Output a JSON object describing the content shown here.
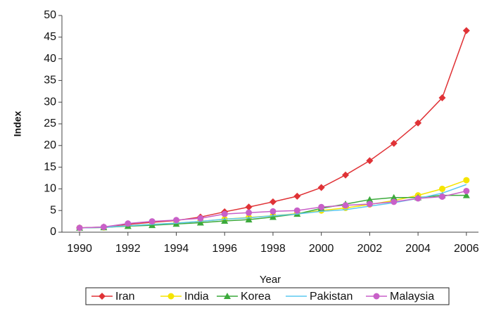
{
  "chart_data": {
    "type": "line",
    "y_label": "Index",
    "x_label": "Year",
    "x": [
      1990,
      1991,
      1992,
      1993,
      1994,
      1995,
      1996,
      1997,
      1998,
      1999,
      2000,
      2001,
      2002,
      2003,
      2004,
      2005,
      2006
    ],
    "xlim": [
      1989.27,
      2006.5
    ],
    "xticks": [
      1990,
      1992,
      1994,
      1996,
      1998,
      2000,
      2002,
      2004,
      2006
    ],
    "ylim": [
      0,
      50
    ],
    "yticks": [
      0,
      5,
      10,
      15,
      20,
      25,
      30,
      35,
      40,
      45,
      50
    ],
    "grid": false,
    "legend": "bottom",
    "series": [
      {
        "name": "Iran",
        "color": "#e03236",
        "marker": "diamond",
        "values": [
          1,
          1.2,
          1.8,
          2.3,
          2.7,
          3.5,
          4.7,
          5.8,
          7,
          8.3,
          10.3,
          13.2,
          16.5,
          20.5,
          25.2,
          31,
          46.5
        ]
      },
      {
        "name": "India",
        "color": "#f5e400",
        "marker": "circle",
        "values": [
          1,
          1.1,
          1.5,
          1.8,
          2.1,
          2.5,
          3,
          3.4,
          3.8,
          4.3,
          5,
          5.6,
          6.4,
          7.3,
          8.5,
          10,
          12
        ]
      },
      {
        "name": "Korea",
        "color": "#3caa3c",
        "marker": "triangle",
        "values": [
          1,
          1.1,
          1.4,
          1.6,
          1.9,
          2.2,
          2.6,
          2.9,
          3.5,
          4.2,
          5.5,
          6.5,
          7.5,
          8,
          8,
          8.5,
          8.5
        ]
      },
      {
        "name": "Pakistan",
        "color": "#5cc8f0",
        "marker": "none",
        "values": [
          1,
          1.1,
          1.5,
          1.8,
          2.1,
          2.5,
          3,
          3.3,
          3.8,
          4.2,
          4.8,
          5.2,
          6,
          6.8,
          7.8,
          9,
          11
        ]
      },
      {
        "name": "Malaysia",
        "color": "#c860c8",
        "marker": "circle",
        "values": [
          1,
          1.2,
          2,
          2.5,
          2.8,
          3.2,
          4.2,
          4.5,
          4.8,
          5,
          5.8,
          6.2,
          6.5,
          7,
          7.8,
          8.2,
          9.5
        ]
      }
    ]
  }
}
